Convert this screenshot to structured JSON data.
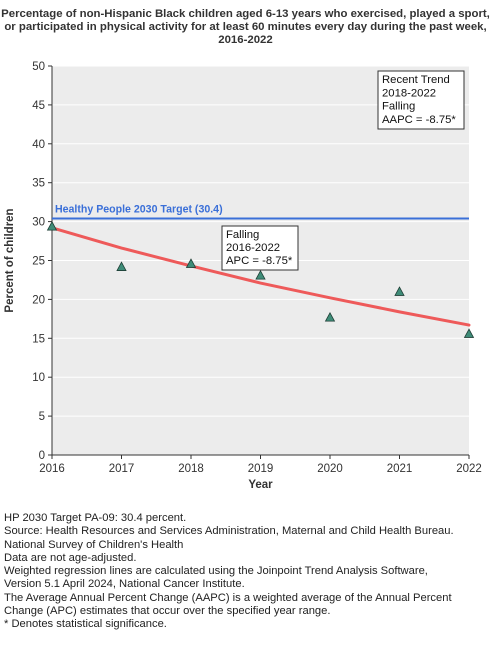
{
  "chart_data": {
    "type": "scatter",
    "title_lines": [
      "Percentage of non-Hispanic Black children aged 6-13 years who exercised, played a sport,",
      "or participated in physical activity for at least 60 minutes every day during the past week,",
      "2016-2022"
    ],
    "xlabel": "Year",
    "ylabel": "Percent of children",
    "xlim": [
      2016,
      2022
    ],
    "ylim": [
      0,
      50
    ],
    "x_ticks": [
      "2016",
      "2017",
      "2018",
      "2019",
      "2020",
      "2021",
      "2022"
    ],
    "y_ticks": [
      "0",
      "5",
      "10",
      "15",
      "20",
      "25",
      "30",
      "35",
      "40",
      "45",
      "50"
    ],
    "grid": true,
    "points": [
      {
        "x": 2016,
        "y": 29.4
      },
      {
        "x": 2017,
        "y": 24.2
      },
      {
        "x": 2018,
        "y": 24.6
      },
      {
        "x": 2019,
        "y": 23.1
      },
      {
        "x": 2020,
        "y": 17.7
      },
      {
        "x": 2021,
        "y": 21.0
      },
      {
        "x": 2022,
        "y": 15.6
      }
    ],
    "trend_line": {
      "x": [
        2016,
        2017,
        2018,
        2019,
        2020,
        2021,
        2022
      ],
      "y": [
        29.2,
        26.6,
        24.3,
        22.1,
        20.2,
        18.4,
        16.7
      ]
    },
    "target": {
      "value": 30.4,
      "label": "Healthy People 2030 Target (30.4)"
    },
    "annotations": {
      "segment": [
        "Falling",
        "2016-2022",
        "APC = -8.75*"
      ],
      "recent": [
        "Recent Trend",
        "2018-2022",
        "Falling",
        "AAPC = -8.75*"
      ]
    },
    "colors": {
      "target": "#3a6fd8",
      "trend": "#ee5a5a",
      "marker_fill": "#3f8c78",
      "marker_stroke": "#1d3d34",
      "plot_bg": "#ececec",
      "grid": "#ffffff"
    }
  },
  "footnotes": [
    "HP 2030 Target PA-09: 30.4 percent.",
    "Source: Health Resources and Services Administration, Maternal and Child Health Bureau.",
    "National Survey of Children's Health",
    "Data are not age-adjusted.",
    "Weighted regression lines are calculated using the Joinpoint Trend Analysis Software,",
    "Version 5.1 April 2024, National Cancer Institute.",
    "The Average Annual Percent Change (AAPC) is a weighted average of the Annual Percent",
    "Change (APC) estimates that occur over the specified year range.",
    "* Denotes statistical significance."
  ]
}
